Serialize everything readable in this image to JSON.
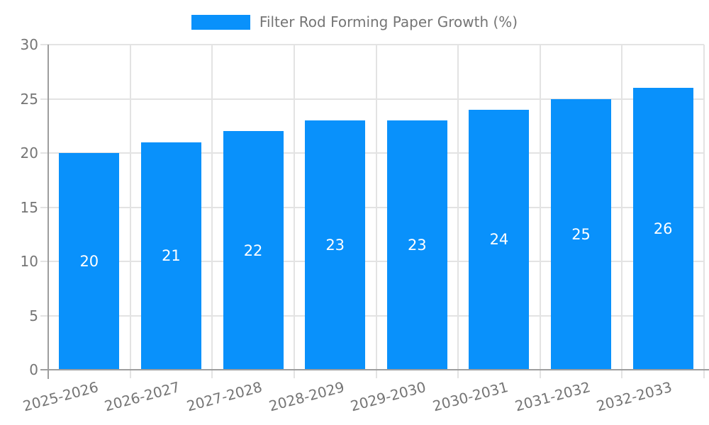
{
  "legend": {
    "label": "Filter Rod Forming Paper Growth (%)",
    "swatch_color": "#0991FB"
  },
  "chart_data": {
    "type": "bar",
    "title": "Filter Rod Forming Paper Growth (%)",
    "categories": [
      "2025-2026",
      "2026-2027",
      "2027-2028",
      "2028-2029",
      "2029-2030",
      "2030-2031",
      "2031-2032",
      "2032-2033"
    ],
    "series": [
      {
        "name": "Filter Rod Forming Paper Growth (%)",
        "values": [
          20,
          21,
          22,
          23,
          23,
          24,
          25,
          26
        ]
      }
    ],
    "xlabel": "",
    "ylabel": "",
    "ylim": [
      0,
      30
    ],
    "ytick_step": 5,
    "yticks": [
      0,
      5,
      10,
      15,
      20,
      25,
      30
    ],
    "grid": "on",
    "legend_position": "top-center",
    "bar_color": "#0991FB",
    "value_label_color": "#FFFFFF",
    "value_label_position": "inside-middle",
    "x_label_rotation_deg": -15
  },
  "colors": {
    "background": "#FFFFFF",
    "grid_line": "#E3E3E3",
    "axis_line": "#9E9E9E",
    "tick_text": "#757575"
  }
}
